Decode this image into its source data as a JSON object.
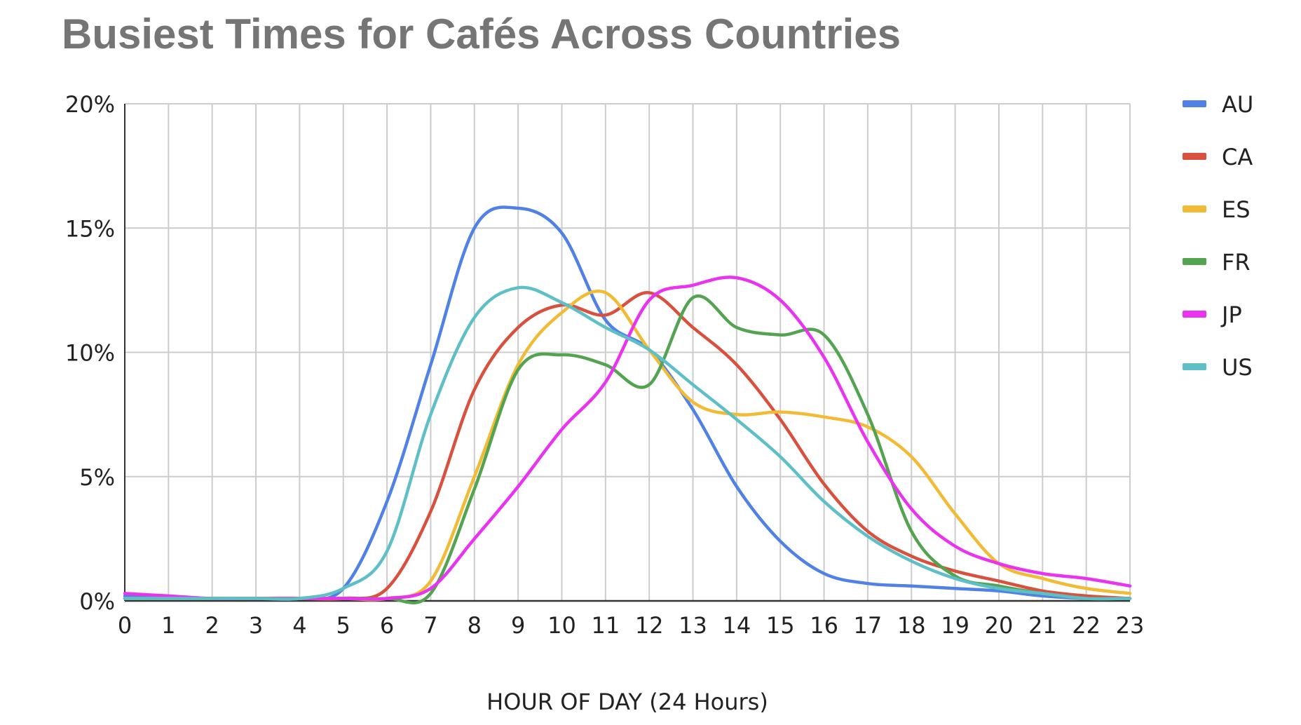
{
  "chart_data": {
    "type": "line",
    "title": "Busiest Times for Cafés Across Countries",
    "xlabel": "HOUR OF DAY (24 Hours)",
    "ylabel": "",
    "x": [
      0,
      1,
      2,
      3,
      4,
      5,
      6,
      7,
      8,
      9,
      10,
      11,
      12,
      13,
      14,
      15,
      16,
      17,
      18,
      19,
      20,
      21,
      22,
      23
    ],
    "x_tick_labels": [
      "0",
      "1",
      "2",
      "3",
      "4",
      "5",
      "6",
      "7",
      "8",
      "9",
      "10",
      "11",
      "12",
      "13",
      "14",
      "15",
      "16",
      "17",
      "18",
      "19",
      "20",
      "21",
      "22",
      "23"
    ],
    "ylim": [
      0,
      20
    ],
    "y_ticks": [
      0,
      5,
      10,
      15,
      20
    ],
    "y_tick_labels": [
      "0%",
      "5%",
      "10%",
      "15%",
      "20%"
    ],
    "grid": true,
    "legend_position": "right",
    "series": [
      {
        "name": "AU",
        "color": "#4f81e6",
        "values": [
          0.2,
          0.1,
          0.1,
          0.1,
          0.1,
          0.5,
          4.0,
          9.5,
          15.0,
          15.8,
          14.8,
          11.3,
          10.1,
          7.7,
          4.6,
          2.4,
          1.1,
          0.7,
          0.6,
          0.5,
          0.4,
          0.2,
          0.1,
          0.1
        ]
      },
      {
        "name": "CA",
        "color": "#d9503e",
        "values": [
          0.1,
          0.1,
          0.1,
          0.1,
          0.1,
          0.1,
          0.5,
          3.6,
          8.5,
          11.0,
          11.9,
          11.5,
          12.4,
          11.0,
          9.5,
          7.3,
          4.7,
          2.8,
          1.8,
          1.2,
          0.8,
          0.4,
          0.2,
          0.1
        ]
      },
      {
        "name": "ES",
        "color": "#f2bb36",
        "values": [
          0.1,
          0.1,
          0.1,
          0.1,
          0.1,
          0.1,
          0.1,
          0.8,
          5.0,
          9.5,
          11.6,
          12.4,
          10.1,
          8.0,
          7.5,
          7.6,
          7.4,
          7.0,
          5.8,
          3.5,
          1.5,
          0.9,
          0.5,
          0.3
        ]
      },
      {
        "name": "FR",
        "color": "#53a351",
        "values": [
          0.1,
          0.1,
          0.1,
          0.1,
          0.1,
          0.1,
          0.1,
          0.3,
          4.5,
          9.3,
          9.9,
          9.5,
          8.7,
          12.2,
          11.0,
          10.7,
          10.7,
          7.5,
          2.8,
          1.0,
          0.6,
          0.3,
          0.1,
          0.1
        ]
      },
      {
        "name": "JP",
        "color": "#ea33f0",
        "values": [
          0.3,
          0.2,
          0.1,
          0.1,
          0.1,
          0.1,
          0.1,
          0.5,
          2.5,
          4.6,
          6.9,
          8.8,
          12.1,
          12.7,
          13.0,
          12.1,
          9.8,
          6.4,
          3.7,
          2.2,
          1.5,
          1.1,
          0.9,
          0.6
        ]
      },
      {
        "name": "US",
        "color": "#5ec0c6",
        "values": [
          0.1,
          0.1,
          0.1,
          0.1,
          0.1,
          0.5,
          2.0,
          7.5,
          11.4,
          12.6,
          12.0,
          11.0,
          10.1,
          8.7,
          7.3,
          5.8,
          4.0,
          2.6,
          1.6,
          0.9,
          0.5,
          0.3,
          0.1,
          0.1
        ]
      }
    ]
  }
}
